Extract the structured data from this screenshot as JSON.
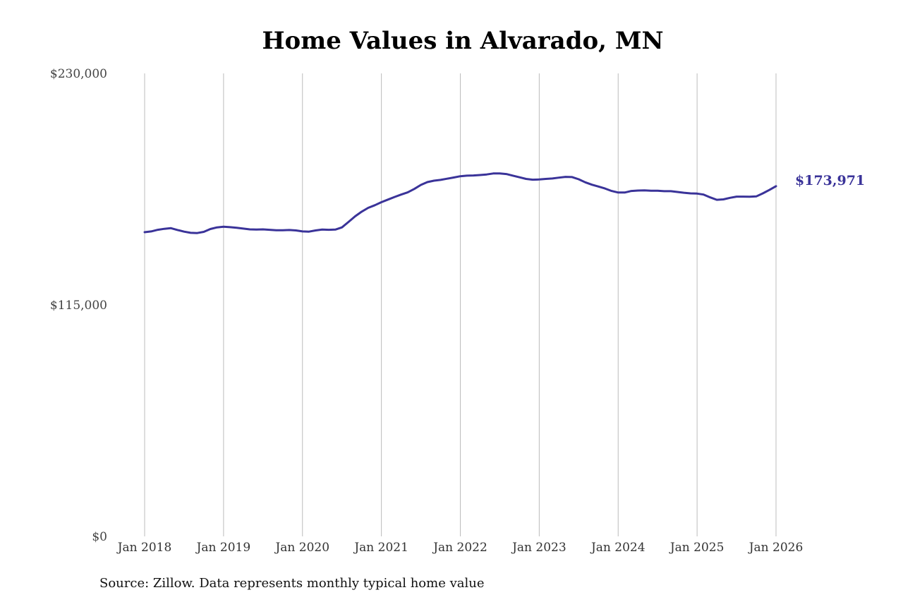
{
  "chart_data": {
    "type": "line",
    "title": "Home Values in Alvarado, MN",
    "xlabel": "",
    "ylabel": "",
    "ylim": [
      0,
      230000
    ],
    "y_ticks": [
      {
        "value": 0,
        "label": "$0"
      },
      {
        "value": 115000,
        "label": "$115,000"
      },
      {
        "value": 230000,
        "label": "$230,000"
      }
    ],
    "x_ticks": [
      {
        "value": 2018,
        "label": "Jan 2018"
      },
      {
        "value": 2019,
        "label": "Jan 2019"
      },
      {
        "value": 2020,
        "label": "Jan 2020"
      },
      {
        "value": 2021,
        "label": "Jan 2021"
      },
      {
        "value": 2022,
        "label": "Jan 2022"
      },
      {
        "value": 2023,
        "label": "Jan 2023"
      },
      {
        "value": 2024,
        "label": "Jan 2024"
      },
      {
        "value": 2025,
        "label": "Jan 2025"
      },
      {
        "value": 2026,
        "label": "Jan 2026"
      }
    ],
    "grid": "vertical",
    "series": [
      {
        "color": "#3a3399",
        "x": [
          2018.0,
          2018.083,
          2018.167,
          2018.25,
          2018.333,
          2018.417,
          2018.5,
          2018.583,
          2018.667,
          2018.75,
          2018.833,
          2018.917,
          2019.0,
          2019.083,
          2019.167,
          2019.25,
          2019.333,
          2019.417,
          2019.5,
          2019.583,
          2019.667,
          2019.75,
          2019.833,
          2019.917,
          2020.0,
          2020.083,
          2020.167,
          2020.25,
          2020.333,
          2020.417,
          2020.5,
          2020.583,
          2020.667,
          2020.75,
          2020.833,
          2020.917,
          2021.0,
          2021.083,
          2021.167,
          2021.25,
          2021.333,
          2021.417,
          2021.5,
          2021.583,
          2021.667,
          2021.75,
          2021.833,
          2021.917,
          2022.0,
          2022.083,
          2022.167,
          2022.25,
          2022.333,
          2022.417,
          2022.5,
          2022.583,
          2022.667,
          2022.75,
          2022.833,
          2022.917,
          2023.0,
          2023.083,
          2023.167,
          2023.25,
          2023.333,
          2023.417,
          2023.5,
          2023.583,
          2023.667,
          2023.75,
          2023.833,
          2023.917,
          2024.0,
          2024.083,
          2024.167,
          2024.25,
          2024.333,
          2024.417,
          2024.5,
          2024.583,
          2024.667,
          2024.75,
          2024.833,
          2024.917,
          2025.0,
          2025.083,
          2025.167,
          2025.25,
          2025.333,
          2025.417,
          2025.5,
          2025.583,
          2025.667,
          2025.75,
          2025.833,
          2025.917,
          2026.0,
          2026.083
        ],
        "y": [
          151100,
          151500,
          152300,
          152800,
          153100,
          152200,
          151400,
          150800,
          150700,
          151300,
          152700,
          153500,
          153800,
          153600,
          153300,
          152900,
          152500,
          152400,
          152500,
          152300,
          152100,
          152100,
          152200,
          152000,
          151500,
          151400,
          152000,
          152400,
          152300,
          152400,
          153500,
          156200,
          159000,
          161300,
          163200,
          164500,
          166000,
          167300,
          168600,
          169800,
          170900,
          172600,
          174600,
          176000,
          176700,
          177100,
          177700,
          178300,
          178900,
          179200,
          179300,
          179500,
          179800,
          180300,
          180300,
          180000,
          179200,
          178400,
          177600,
          177200,
          177300,
          177600,
          177800,
          178200,
          178600,
          178500,
          177400,
          175900,
          174700,
          173800,
          172800,
          171600,
          170800,
          170800,
          171600,
          171800,
          171900,
          171700,
          171700,
          171500,
          171500,
          171100,
          170700,
          170400,
          170300,
          169800,
          168400,
          167200,
          167400,
          168200,
          168800,
          168800,
          168700,
          168900,
          170400,
          172100,
          173971,
          173971
        ],
        "end_label": "$173,971"
      }
    ]
  },
  "source_note": "Source: Zillow. Data represents monthly typical home value"
}
